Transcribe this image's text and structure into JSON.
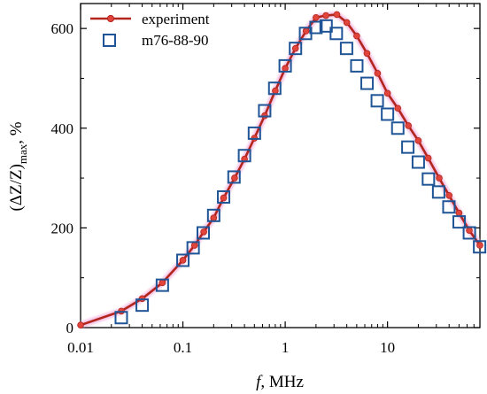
{
  "chart_data": {
    "type": "line",
    "xscale": "log",
    "xlim": [
      0.01,
      80
    ],
    "ylim": [
      0,
      650
    ],
    "x_ticks": [
      {
        "value": 0.01,
        "label": "0.01"
      },
      {
        "value": 0.1,
        "label": "0.1"
      },
      {
        "value": 1,
        "label": "1"
      },
      {
        "value": 10,
        "label": "10"
      }
    ],
    "y_ticks": [
      {
        "value": 0,
        "label": "0"
      },
      {
        "value": 200,
        "label": "200"
      },
      {
        "value": 400,
        "label": "400"
      },
      {
        "value": 600,
        "label": "600"
      }
    ],
    "xlabel": {
      "italic": "f",
      "rest": ", MHz"
    },
    "ylabel": {
      "main": "(ΔZ/Z)",
      "sub": "max",
      "rest": ", %"
    },
    "legend_position": "top-left",
    "series": [
      {
        "name": "experiment",
        "style": "line-with-dots",
        "color": "#b3261e",
        "glow": "#f4b6e0",
        "x": [
          0.01,
          0.025,
          0.04,
          0.063,
          0.1,
          0.13,
          0.16,
          0.2,
          0.25,
          0.32,
          0.4,
          0.5,
          0.63,
          0.8,
          1.0,
          1.26,
          1.6,
          2.0,
          2.5,
          3.2,
          4.0,
          5.0,
          6.3,
          8.0,
          10.0,
          12.6,
          16.0,
          20.0,
          25.0,
          32.0,
          40.0,
          50.0,
          63.0,
          80.0
        ],
        "y": [
          5,
          33,
          58,
          90,
          135,
          165,
          192,
          220,
          260,
          300,
          338,
          380,
          425,
          475,
          520,
          560,
          595,
          622,
          626,
          628,
          612,
          585,
          550,
          510,
          470,
          440,
          405,
          375,
          340,
          300,
          265,
          230,
          195,
          165
        ]
      },
      {
        "name": "m76-88-90",
        "style": "open-square",
        "color": "#1f5596",
        "x": [
          0.025,
          0.04,
          0.063,
          0.1,
          0.126,
          0.158,
          0.2,
          0.25,
          0.316,
          0.4,
          0.5,
          0.63,
          0.79,
          1.0,
          1.26,
          1.58,
          2.0,
          2.51,
          3.16,
          3.98,
          5.01,
          6.31,
          7.94,
          10.0,
          12.6,
          15.8,
          20.0,
          25.1,
          31.6,
          39.8,
          50.1,
          63.1,
          79.4
        ],
        "y": [
          20,
          45,
          85,
          135,
          160,
          190,
          225,
          262,
          302,
          345,
          390,
          435,
          480,
          525,
          560,
          590,
          602,
          605,
          590,
          560,
          525,
          490,
          455,
          428,
          400,
          362,
          332,
          298,
          272,
          242,
          212,
          190,
          162
        ]
      }
    ]
  }
}
